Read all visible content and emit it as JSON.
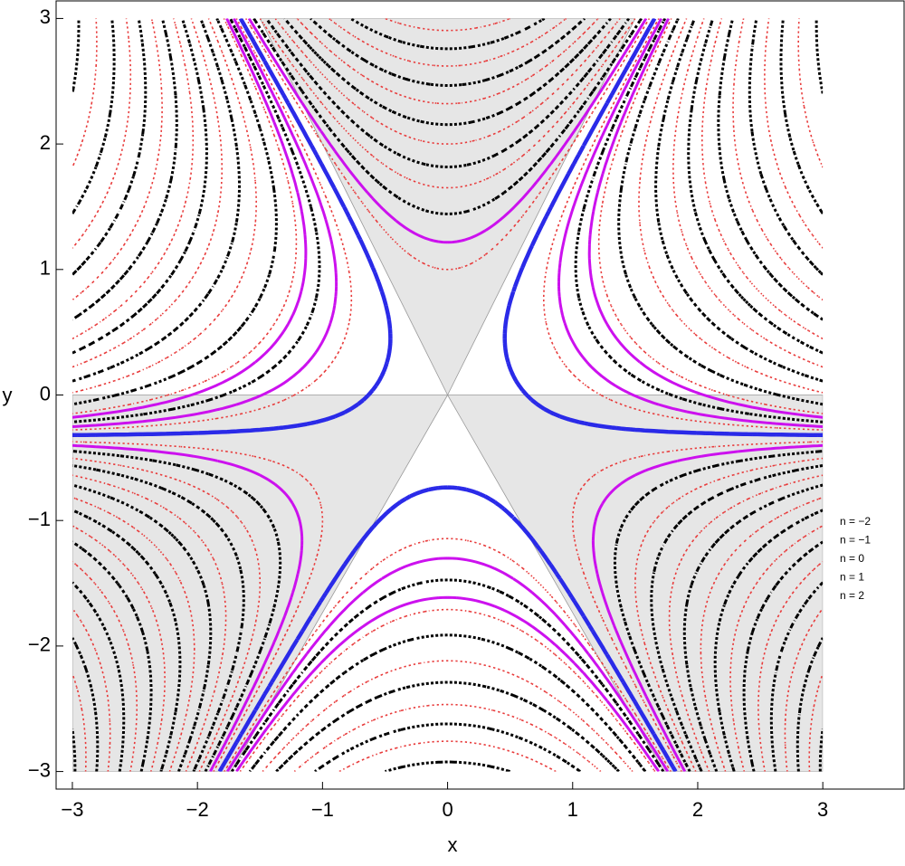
{
  "chart_data": {
    "type": "contour",
    "x_label": "x",
    "y_label": "y",
    "xlim": [
      -3.13,
      3.65
    ],
    "ylim": [
      -3.14,
      3.14
    ],
    "domain": [
      -3,
      3
    ],
    "xticks": [
      {
        "value": -3,
        "label": "−3"
      },
      {
        "value": -2,
        "label": "−2"
      },
      {
        "value": -1,
        "label": "−1"
      },
      0,
      1,
      2,
      3
    ],
    "yticks": [
      {
        "value": -3,
        "label": "−3"
      },
      {
        "value": -2,
        "label": "−2"
      },
      {
        "value": -1,
        "label": "−1"
      },
      0,
      1,
      2,
      3
    ],
    "shaded_color": "#e6e6e6",
    "shaded": [
      [
        [
          0,
          0
        ],
        [
          -1.5,
          3
        ],
        [
          1.5,
          3
        ]
      ],
      [
        [
          -3,
          0
        ],
        [
          0,
          0
        ],
        [
          -1.73,
          -3
        ],
        [
          -3,
          -3
        ]
      ],
      [
        [
          3,
          0
        ],
        [
          0,
          0
        ],
        [
          1.73,
          -3
        ],
        [
          3,
          -3
        ]
      ]
    ],
    "series": [
      {
        "name": "n = −2",
        "color": "#e83a3a",
        "levels": [
          -52,
          -39,
          -29,
          -21,
          -15,
          -9.5,
          -5,
          -1.5,
          1,
          4.5,
          8,
          12.5,
          18,
          24.5,
          32,
          40
        ]
      },
      {
        "name": "n = −1",
        "color": "#000000",
        "levels": [
          -60,
          -45,
          -34,
          -25,
          -18,
          -12,
          -7,
          -3.2,
          3,
          6,
          10,
          15,
          21,
          28,
          36,
          44
        ]
      },
      {
        "name": "n = 0",
        "color": "#2a2ae8",
        "levels": [
          -0.4
        ]
      },
      {
        "name": "n = 1",
        "color": "#cc11ee",
        "levels": [
          -2.2,
          1.8
        ]
      },
      {
        "name": "n = 2",
        "color": "#cc11ee",
        "levels": [
          -4.2
        ]
      }
    ]
  }
}
